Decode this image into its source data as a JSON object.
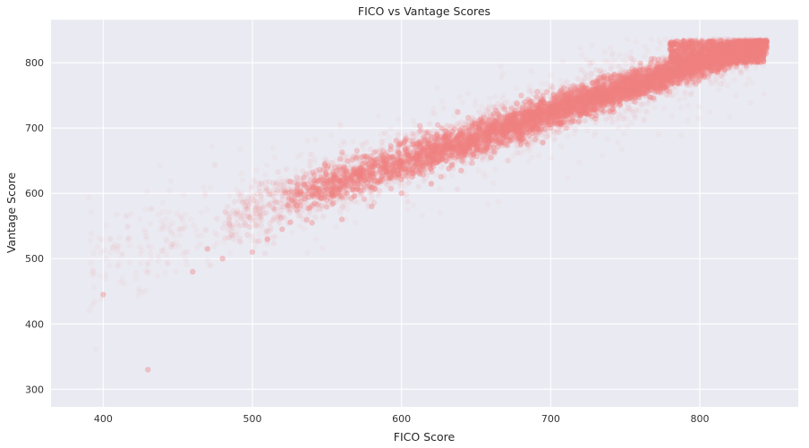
{
  "chart_data": {
    "type": "scatter",
    "title": "FICO vs Vantage Scores",
    "xlabel": "FICO Score",
    "ylabel": "Vantage Score",
    "xlim": [
      365,
      866
    ],
    "ylim": [
      273,
      866
    ],
    "xticks": [
      400,
      500,
      600,
      700,
      800
    ],
    "yticks": [
      300,
      400,
      500,
      600,
      700,
      800
    ],
    "grid": true,
    "background_color": "#eaeaf2",
    "grid_color": "#ffffff",
    "point_color": "#f08080",
    "series": [
      {
        "points_sample": [
          [
            400,
            445
          ],
          [
            430,
            330
          ],
          [
            460,
            480
          ],
          [
            470,
            515
          ],
          [
            480,
            500
          ],
          [
            500,
            510
          ],
          [
            510,
            530
          ],
          [
            520,
            545
          ],
          [
            540,
            555
          ],
          [
            560,
            560
          ],
          [
            580,
            580
          ],
          [
            600,
            600
          ],
          [
            620,
            615
          ],
          [
            640,
            635
          ],
          [
            660,
            655
          ],
          [
            680,
            675
          ],
          [
            700,
            700
          ],
          [
            720,
            720
          ],
          [
            740,
            745
          ],
          [
            760,
            770
          ],
          [
            780,
            790
          ],
          [
            800,
            805
          ],
          [
            820,
            820
          ],
          [
            840,
            828
          ]
        ]
      }
    ]
  }
}
